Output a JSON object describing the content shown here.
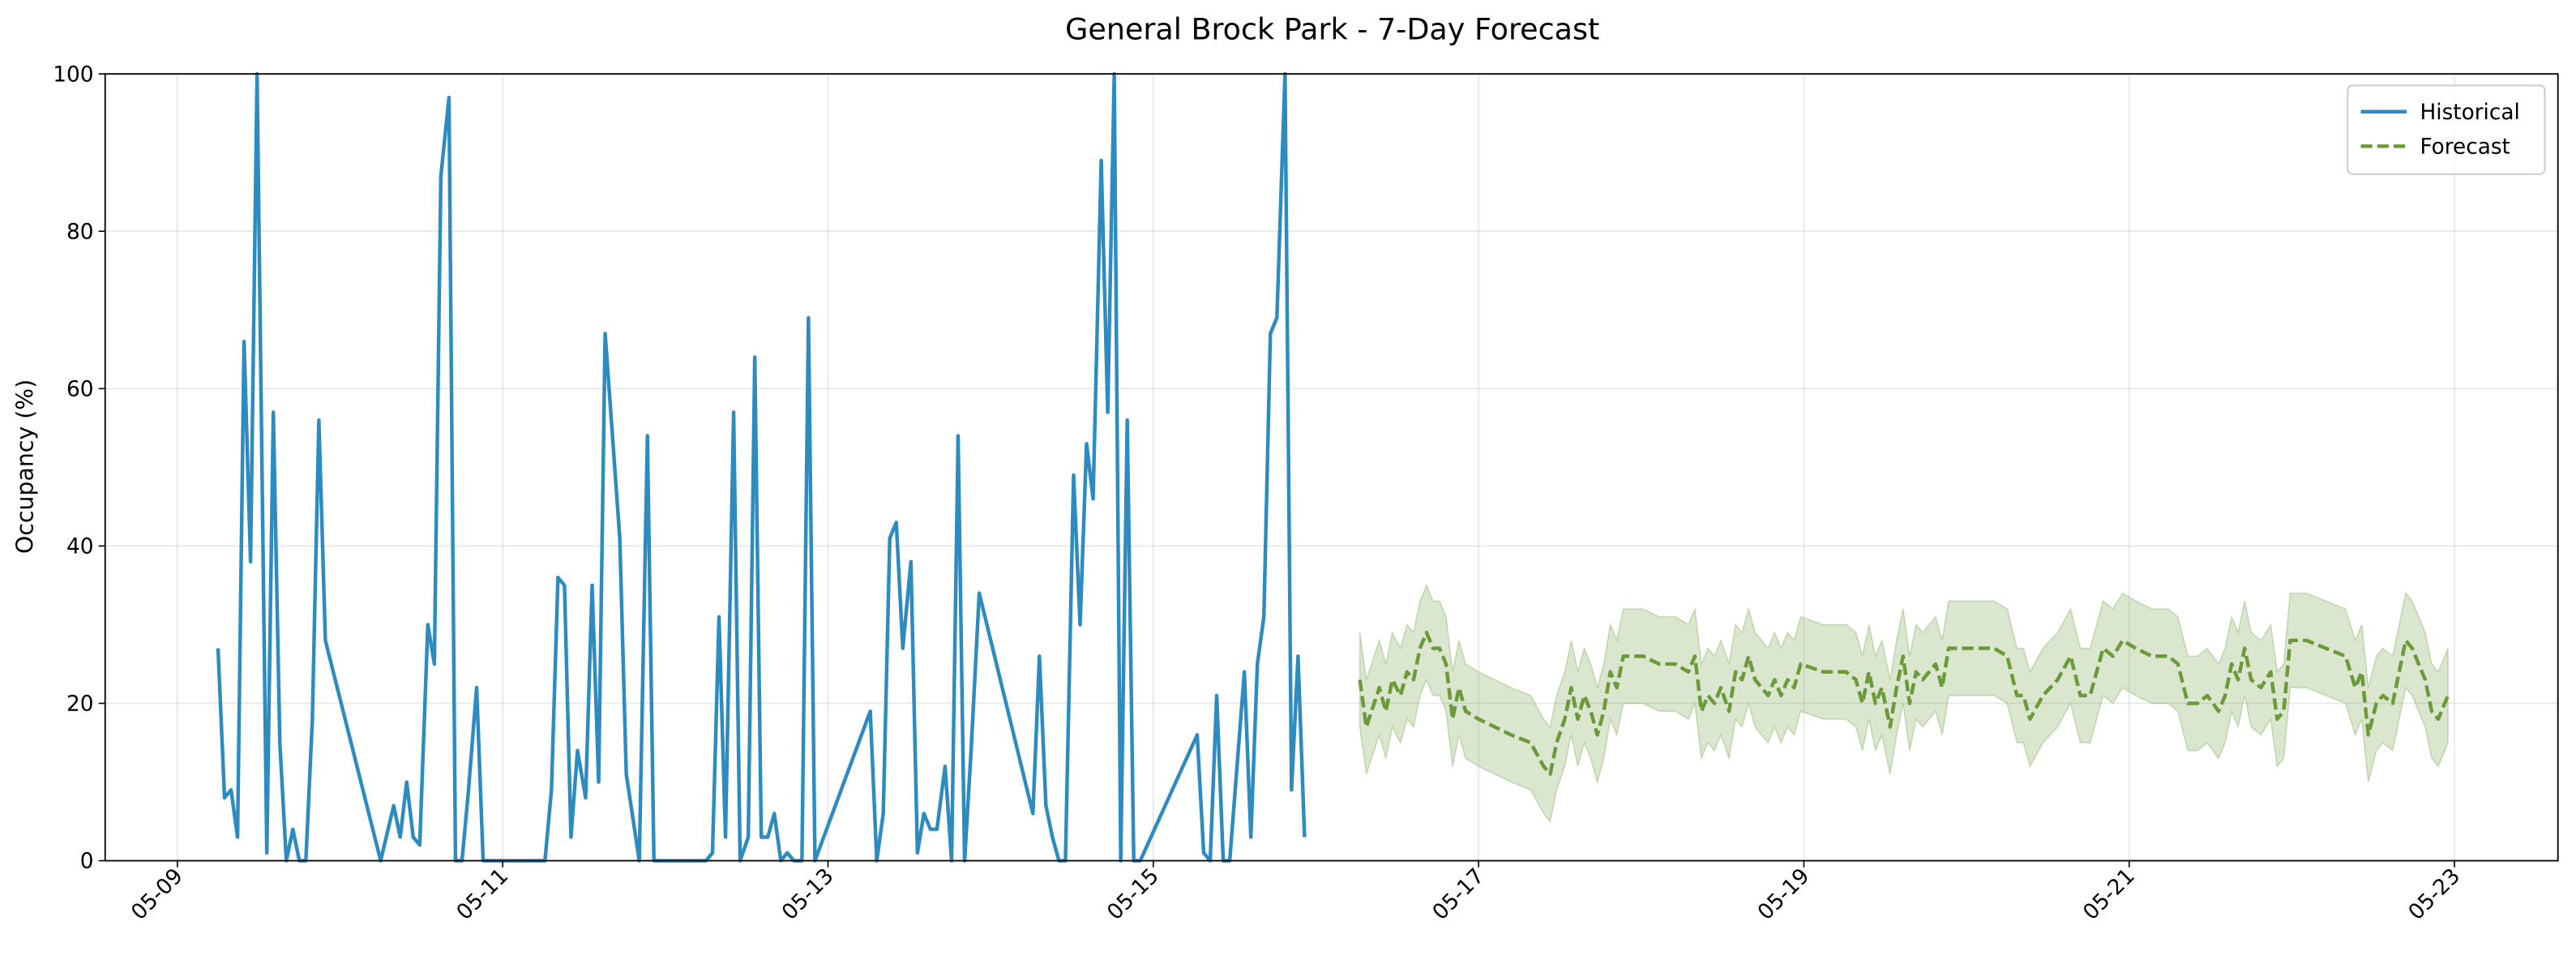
{
  "chart_data": {
    "type": "line",
    "title": "General Brock Park - 7-Day Forecast",
    "ylabel": "Occupancy (%)",
    "xlim": [
      8.556,
      23.636
    ],
    "xticks": [
      {
        "value": 9,
        "label": "05-09"
      },
      {
        "value": 11,
        "label": "05-11"
      },
      {
        "value": 13,
        "label": "05-13"
      },
      {
        "value": 15,
        "label": "05-15"
      },
      {
        "value": 17,
        "label": "05-17"
      },
      {
        "value": 19,
        "label": "05-19"
      },
      {
        "value": 21,
        "label": "05-21"
      },
      {
        "value": 23,
        "label": "05-23"
      }
    ],
    "ylim": [
      0,
      100
    ],
    "yticks": [
      0,
      20,
      40,
      60,
      80,
      100
    ],
    "grid": true,
    "legend": "upper right",
    "series": [
      {
        "name": "Historical",
        "color": "#2e8bc0",
        "style": "solid",
        "x": [
          9.25,
          9.29,
          9.33,
          9.37,
          9.41,
          9.45,
          9.49,
          9.55,
          9.59,
          9.63,
          9.67,
          9.71,
          9.75,
          9.79,
          9.83,
          9.87,
          9.91,
          10.25,
          10.33,
          10.37,
          10.41,
          10.45,
          10.49,
          10.54,
          10.58,
          10.62,
          10.67,
          10.71,
          10.75,
          10.79,
          10.84,
          10.88,
          10.92,
          10.96,
          11.26,
          11.3,
          11.34,
          11.38,
          11.42,
          11.46,
          11.51,
          11.55,
          11.59,
          11.63,
          11.72,
          11.76,
          11.84,
          11.89,
          11.93,
          12.25,
          12.29,
          12.33,
          12.37,
          12.42,
          12.46,
          12.51,
          12.55,
          12.59,
          12.63,
          12.67,
          12.71,
          12.75,
          12.79,
          12.84,
          12.88,
          12.92,
          13.26,
          13.3,
          13.34,
          13.38,
          13.42,
          13.46,
          13.51,
          13.55,
          13.59,
          13.63,
          13.67,
          13.72,
          13.76,
          13.8,
          13.84,
          13.88,
          13.93,
          14.26,
          14.3,
          14.34,
          14.38,
          14.42,
          14.46,
          14.51,
          14.55,
          14.59,
          14.63,
          14.68,
          14.72,
          14.76,
          14.8,
          14.84,
          14.88,
          14.92,
          15.27,
          15.31,
          15.35,
          15.39,
          15.43,
          15.47,
          15.56,
          15.6,
          15.64,
          15.68,
          15.72,
          15.76,
          15.81,
          15.85,
          15.89,
          15.93
        ],
        "values": [
          27,
          8,
          9,
          3,
          66,
          38,
          100,
          1,
          57,
          15,
          0,
          4,
          0,
          0,
          18,
          56,
          28,
          0,
          7,
          3,
          10,
          3,
          2,
          30,
          25,
          87,
          97,
          0,
          0,
          9,
          22,
          0,
          0,
          0,
          0,
          9,
          36,
          35,
          3,
          14,
          8,
          35,
          10,
          67,
          41,
          11,
          0,
          54,
          0,
          0,
          1,
          31,
          3,
          57,
          0,
          3,
          64,
          3,
          3,
          6,
          0,
          1,
          0,
          0,
          69,
          0,
          19,
          0,
          6,
          41,
          43,
          27,
          38,
          1,
          6,
          4,
          4,
          12,
          0,
          54,
          0,
          14,
          34,
          6,
          26,
          7,
          3,
          0,
          0,
          49,
          30,
          53,
          46,
          89,
          57,
          100,
          0,
          56,
          0,
          0,
          16,
          1,
          0,
          21,
          0,
          0,
          24,
          3,
          25,
          31,
          67,
          69,
          100,
          9,
          26,
          3
        ]
      },
      {
        "name": "Forecast",
        "color": "#6b9a3a",
        "style": "dashed",
        "x": [
          16.27,
          16.31,
          16.39,
          16.43,
          16.47,
          16.52,
          16.56,
          16.6,
          16.64,
          16.68,
          16.72,
          16.76,
          16.8,
          16.84,
          16.88,
          16.92,
          17.0,
          17.1,
          17.2,
          17.32,
          17.4,
          17.44,
          17.48,
          17.53,
          17.57,
          17.61,
          17.65,
          17.69,
          17.73,
          17.77,
          17.81,
          17.85,
          17.89,
          17.93,
          18.01,
          18.11,
          18.21,
          18.29,
          18.33,
          18.37,
          18.41,
          18.45,
          18.49,
          18.54,
          18.58,
          18.62,
          18.66,
          18.7,
          18.74,
          18.78,
          18.82,
          18.86,
          18.9,
          18.94,
          18.98,
          19.12,
          19.26,
          19.32,
          19.36,
          19.4,
          19.44,
          19.48,
          19.53,
          19.57,
          19.61,
          19.65,
          19.69,
          19.73,
          19.81,
          19.85,
          19.89,
          20.03,
          20.17,
          20.25,
          20.31,
          20.35,
          20.39,
          20.47,
          20.56,
          20.64,
          20.7,
          20.76,
          20.84,
          20.9,
          20.96,
          21.04,
          21.14,
          21.24,
          21.3,
          21.36,
          21.42,
          21.48,
          21.55,
          21.59,
          21.63,
          21.67,
          21.71,
          21.75,
          21.81,
          21.87,
          21.91,
          21.95,
          21.99,
          22.09,
          22.21,
          22.33,
          22.39,
          22.43,
          22.47,
          22.52,
          22.56,
          22.62,
          22.66,
          22.7,
          22.74,
          22.78,
          22.82,
          22.86,
          22.9,
          22.96
        ],
        "values": [
          23,
          17,
          22,
          19,
          23,
          21,
          24,
          23,
          27,
          29,
          27,
          27,
          25,
          18,
          22,
          19,
          18,
          17,
          16,
          15,
          12,
          11,
          15,
          18,
          22,
          18,
          21,
          19,
          16,
          19,
          24,
          22,
          26,
          26,
          26,
          25,
          25,
          24,
          26,
          19,
          21,
          20,
          22,
          19,
          24,
          23,
          26,
          23,
          22,
          21,
          23,
          21,
          23,
          22,
          25,
          24,
          24,
          23,
          20,
          24,
          20,
          22,
          17,
          22,
          26,
          20,
          24,
          23,
          25,
          22,
          27,
          27,
          27,
          26,
          21,
          21,
          18,
          21,
          23,
          26,
          21,
          21,
          27,
          26,
          28,
          27,
          26,
          26,
          25,
          20,
          20,
          21,
          19,
          21,
          25,
          23,
          27,
          23,
          22,
          24,
          18,
          19,
          28,
          28,
          27,
          26,
          22,
          24,
          16,
          20,
          21,
          20,
          24,
          28,
          27,
          25,
          23,
          19,
          18,
          21
        ],
        "lower": [
          17,
          11,
          16,
          13,
          17,
          15,
          18,
          17,
          21,
          23,
          21,
          21,
          19,
          12,
          16,
          13,
          12,
          11,
          10,
          9,
          6,
          5,
          9,
          12,
          16,
          12,
          15,
          13,
          10,
          13,
          18,
          16,
          20,
          20,
          20,
          19,
          19,
          18,
          20,
          13,
          15,
          14,
          16,
          13,
          18,
          17,
          20,
          17,
          16,
          15,
          17,
          15,
          17,
          16,
          19,
          18,
          18,
          17,
          14,
          18,
          14,
          16,
          11,
          16,
          20,
          14,
          18,
          17,
          19,
          16,
          21,
          21,
          21,
          20,
          15,
          15,
          12,
          15,
          17,
          20,
          15,
          15,
          21,
          20,
          22,
          21,
          20,
          20,
          19,
          14,
          14,
          15,
          13,
          15,
          19,
          17,
          21,
          17,
          16,
          18,
          12,
          13,
          22,
          22,
          21,
          20,
          16,
          18,
          10,
          14,
          15,
          14,
          18,
          22,
          21,
          19,
          17,
          13,
          12,
          15
        ],
        "upper": [
          29,
          23,
          28,
          25,
          29,
          27,
          30,
          29,
          33,
          35,
          33,
          33,
          31,
          24,
          28,
          25,
          24,
          23,
          22,
          21,
          18,
          17,
          21,
          24,
          28,
          24,
          27,
          25,
          22,
          25,
          30,
          28,
          32,
          32,
          32,
          31,
          31,
          30,
          32,
          25,
          27,
          26,
          28,
          25,
          30,
          29,
          32,
          29,
          28,
          27,
          29,
          27,
          29,
          28,
          31,
          30,
          30,
          29,
          26,
          30,
          26,
          28,
          23,
          28,
          32,
          26,
          30,
          29,
          31,
          28,
          33,
          33,
          33,
          32,
          27,
          27,
          24,
          27,
          29,
          32,
          27,
          27,
          33,
          32,
          34,
          33,
          32,
          32,
          31,
          26,
          26,
          27,
          25,
          27,
          31,
          29,
          33,
          29,
          28,
          30,
          24,
          25,
          34,
          34,
          33,
          32,
          28,
          30,
          22,
          26,
          27,
          26,
          30,
          34,
          33,
          31,
          29,
          25,
          24,
          27
        ]
      }
    ]
  }
}
